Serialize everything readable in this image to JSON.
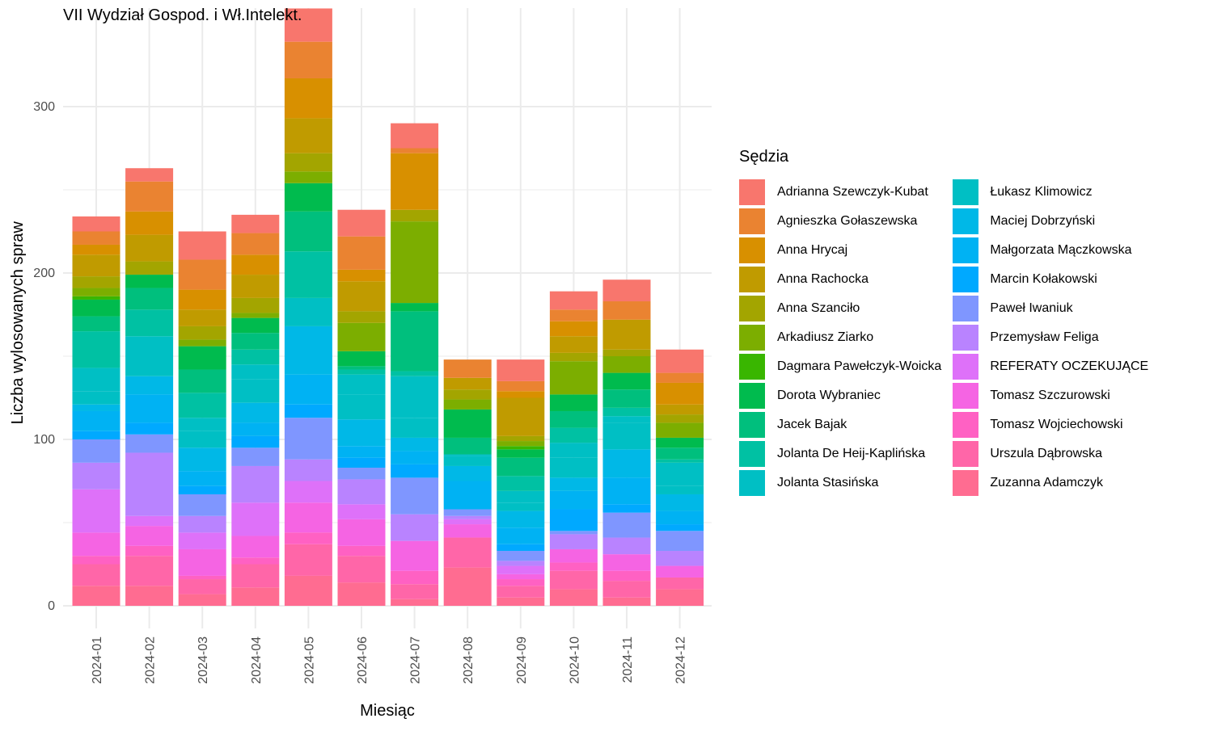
{
  "chart_data": {
    "type": "bar",
    "stacked": true,
    "title": "VII Wydział Gospod. i Wł.Intelekt.",
    "xlabel": "Miesiąc",
    "ylabel": "Liczba wylosowanych spraw",
    "ylim": [
      0,
      345
    ],
    "yticks": [
      0,
      100,
      200,
      300
    ],
    "grid": true,
    "legend_title": "Sędzia",
    "legend_position": "right",
    "categories": [
      "2024-01",
      "2024-02",
      "2024-03",
      "2024-04",
      "2024-05",
      "2024-06",
      "2024-07",
      "2024-08",
      "2024-09",
      "2024-10",
      "2024-11",
      "2024-12"
    ],
    "series": [
      {
        "name": "Adrianna Szewczyk-Kubat",
        "color": "#F8766D",
        "values": [
          9,
          8,
          17,
          11,
          20,
          16,
          15,
          0,
          13,
          11,
          13,
          14
        ]
      },
      {
        "name": "Agnieszka Gołaszewska",
        "color": "#EA8331",
        "values": [
          8,
          18,
          18,
          13,
          22,
          20,
          3,
          11,
          6,
          7,
          11,
          6
        ]
      },
      {
        "name": "Anna Hrycaj",
        "color": "#D89000",
        "values": [
          6,
          14,
          12,
          12,
          24,
          7,
          34,
          0,
          4,
          9,
          0,
          13
        ]
      },
      {
        "name": "Anna Rachocka",
        "color": "#C09B00",
        "values": [
          13,
          16,
          10,
          14,
          21,
          18,
          0,
          7,
          23,
          10,
          18,
          6
        ]
      },
      {
        "name": "Anna Szanciło",
        "color": "#A3A500",
        "values": [
          7,
          8,
          8,
          9,
          11,
          7,
          7,
          6,
          3,
          5,
          4,
          5
        ]
      },
      {
        "name": "Arkadiusz Ziarko",
        "color": "#7CAE00",
        "values": [
          5,
          0,
          4,
          3,
          7,
          17,
          49,
          6,
          3,
          20,
          10,
          9
        ]
      },
      {
        "name": "Dagmara Pawełczyk-Woicka",
        "color": "#39B600",
        "values": [
          2,
          0,
          0,
          0,
          0,
          0,
          0,
          0,
          2,
          0,
          0,
          0
        ]
      },
      {
        "name": "Dorota Wybraniec",
        "color": "#00BB4E",
        "values": [
          10,
          8,
          14,
          9,
          17,
          9,
          5,
          17,
          5,
          10,
          10,
          6
        ]
      },
      {
        "name": "Jacek Bajak",
        "color": "#00BF7D",
        "values": [
          9,
          13,
          14,
          10,
          24,
          2,
          36,
          10,
          11,
          10,
          11,
          7
        ]
      },
      {
        "name": "Jolanta De Heij-Kaplińska",
        "color": "#00C1A3",
        "values": [
          22,
          16,
          15,
          9,
          28,
          3,
          3,
          0,
          9,
          9,
          5,
          2
        ]
      },
      {
        "name": "Jolanta Stasińska",
        "color": "#00BFC4",
        "values": [
          14,
          12,
          8,
          9,
          0,
          12,
          25,
          1,
          7,
          9,
          4,
          14
        ]
      },
      {
        "name": "Łukasz Klimowicz",
        "color": "#00BFC4",
        "values": [
          8,
          12,
          10,
          14,
          17,
          15,
          12,
          6,
          5,
          12,
          16,
          5
        ]
      },
      {
        "name": "Maciej Dobrzyński",
        "color": "#00B8E7",
        "values": [
          4,
          11,
          14,
          12,
          29,
          16,
          8,
          9,
          10,
          8,
          17,
          10
        ]
      },
      {
        "name": "Małgorzata Mączkowska",
        "color": "#00B2F3",
        "values": [
          12,
          17,
          9,
          8,
          18,
          7,
          8,
          17,
          10,
          11,
          16,
          8
        ]
      },
      {
        "name": "Marcin Kołakowski",
        "color": "#00A9FF",
        "values": [
          5,
          7,
          5,
          7,
          8,
          6,
          8,
          0,
          4,
          13,
          5,
          4
        ]
      },
      {
        "name": "Paweł Iwaniuk",
        "color": "#7F96FF",
        "values": [
          14,
          11,
          13,
          11,
          25,
          7,
          22,
          4,
          6,
          2,
          15,
          12
        ]
      },
      {
        "name": "Przemysław Feliga",
        "color": "#B983FF",
        "values": [
          16,
          38,
          10,
          22,
          13,
          15,
          16,
          2,
          3,
          9,
          10,
          9
        ]
      },
      {
        "name": "REFERATY OCZEKUJĄCE",
        "color": "#DE71F9",
        "values": [
          26,
          6,
          10,
          20,
          13,
          9,
          0,
          3,
          5,
          0,
          0,
          0
        ]
      },
      {
        "name": "Tomasz Szczurowski",
        "color": "#F564E3",
        "values": [
          14,
          12,
          16,
          13,
          18,
          16,
          18,
          8,
          3,
          8,
          10,
          7
        ]
      },
      {
        "name": "Tomasz Wojciechowski",
        "color": "#FF61C3",
        "values": [
          5,
          6,
          2,
          4,
          7,
          6,
          8,
          0,
          4,
          5,
          6,
          0
        ]
      },
      {
        "name": "Urszula Dąbrowska",
        "color": "#FF66A8",
        "values": [
          13,
          18,
          9,
          14,
          19,
          16,
          9,
          18,
          7,
          11,
          10,
          7
        ]
      },
      {
        "name": "Zuzanna Adamczyk",
        "color": "#FF6C91",
        "values": [
          12,
          12,
          7,
          11,
          18,
          14,
          4,
          23,
          5,
          10,
          5,
          10
        ]
      }
    ]
  }
}
